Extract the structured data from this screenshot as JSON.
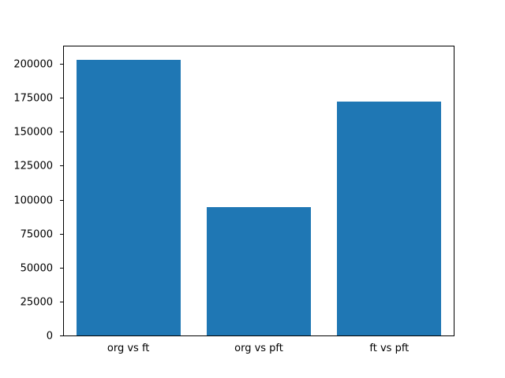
{
  "figure": {
    "background": "#ffffff",
    "axes_border_color": "#000000"
  },
  "chart_data": {
    "type": "bar",
    "categories": [
      "org vs ft",
      "org vs pft",
      "ft vs pft"
    ],
    "values": [
      204000,
      95000,
      173000
    ],
    "title": "",
    "xlabel": "",
    "ylabel": "",
    "ylim": [
      0,
      214000
    ],
    "yticks": [
      0,
      25000,
      50000,
      75000,
      100000,
      125000,
      150000,
      175000,
      200000
    ],
    "bar_color": "#1f77b4",
    "bar_width_fraction": 0.8,
    "grid": false,
    "legend_position": "none"
  }
}
